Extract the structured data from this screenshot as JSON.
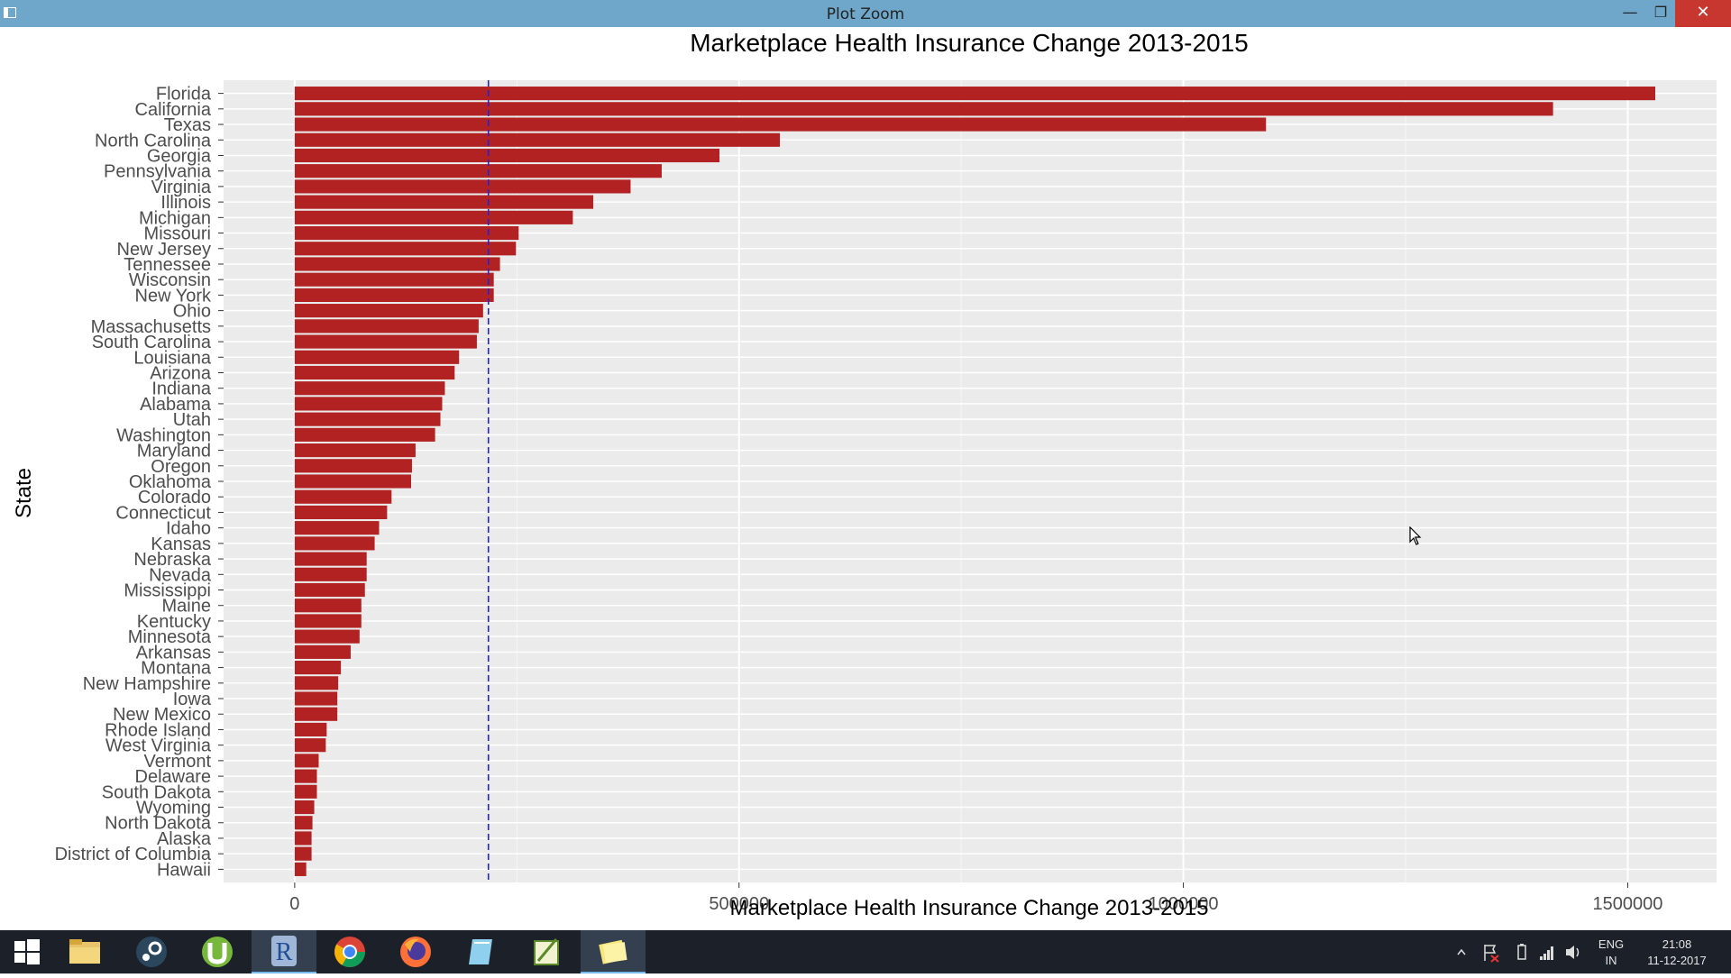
{
  "window": {
    "title": "Plot Zoom",
    "minimize_glyph": "—",
    "maximize_glyph": "❐",
    "close_glyph": "✕"
  },
  "chart_data": {
    "type": "bar",
    "orientation": "horizontal",
    "title": "Marketplace Health Insurance Change 2013-2015",
    "xlabel": "Marketplace Health Insurance Change 2013-2015",
    "ylabel": "State",
    "xlim": [
      -80000,
      1600000
    ],
    "xticks": [
      0,
      500000,
      1000000,
      1500000
    ],
    "xtick_labels": [
      "0",
      "500000",
      "1000000",
      "1500000"
    ],
    "bar_color": "#b22222",
    "panel_background": "#ebebeb",
    "grid": true,
    "reference_line": {
      "value": 218000,
      "style": "dashed",
      "color": "#2222dd"
    },
    "categories": [
      "Florida",
      "California",
      "Texas",
      "North Carolina",
      "Georgia",
      "Pennsylvania",
      "Virginia",
      "Illinois",
      "Michigan",
      "Missouri",
      "New Jersey",
      "Tennessee",
      "Wisconsin",
      "New York",
      "Ohio",
      "Massachusetts",
      "South Carolina",
      "Louisiana",
      "Arizona",
      "Indiana",
      "Alabama",
      "Utah",
      "Washington",
      "Maryland",
      "Oregon",
      "Oklahoma",
      "Colorado",
      "Connecticut",
      "Idaho",
      "Kansas",
      "Nebraska",
      "Nevada",
      "Mississippi",
      "Maine",
      "Kentucky",
      "Minnesota",
      "Arkansas",
      "Montana",
      "New Hampshire",
      "Iowa",
      "New Mexico",
      "Rhode Island",
      "West Virginia",
      "Vermont",
      "Delaware",
      "South Dakota",
      "Wyoming",
      "North Dakota",
      "Alaska",
      "District of Columbia",
      "Hawaii"
    ],
    "values": [
      1531000,
      1416000,
      1093000,
      546000,
      478000,
      413000,
      378000,
      336000,
      313000,
      252000,
      249000,
      231000,
      224000,
      224000,
      212000,
      207000,
      205000,
      185000,
      180000,
      169000,
      166000,
      164000,
      158000,
      136000,
      132000,
      131000,
      109000,
      104000,
      95000,
      90000,
      81000,
      81000,
      79000,
      75000,
      75000,
      73000,
      63000,
      52000,
      49000,
      48000,
      48000,
      36000,
      35000,
      27000,
      25000,
      25000,
      22000,
      20000,
      19000,
      19000,
      13000
    ]
  },
  "taskbar": {
    "apps": [
      "File Explorer",
      "Steam",
      "uTorrent",
      "R",
      "Google Chrome",
      "Firefox",
      "Notepad",
      "Editor",
      "Sticky Notes"
    ],
    "tray": {
      "language": "ENG",
      "region": "IN",
      "time": "21:08",
      "date": "11-12-2017"
    }
  }
}
